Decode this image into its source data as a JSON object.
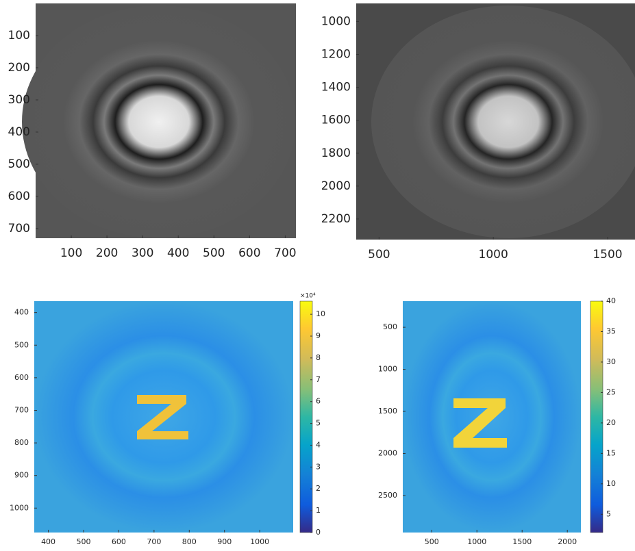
{
  "chart_data": [
    {
      "type": "image",
      "xlim": [
        0,
        730
      ],
      "ylim": [
        0,
        730
      ],
      "xticks": [
        100,
        200,
        300,
        400,
        500,
        600,
        700
      ],
      "yticks": [
        100,
        200,
        300,
        400,
        500,
        600,
        700
      ]
    },
    {
      "type": "image",
      "xlim": [
        400,
        1620
      ],
      "ylim": [
        890,
        2325
      ],
      "xticks": [
        500,
        1000,
        1500
      ],
      "yticks": [
        1000,
        1200,
        1400,
        1600,
        1800,
        2000,
        2200
      ]
    },
    {
      "type": "image",
      "xlim": [
        360,
        1095
      ],
      "ylim": [
        365,
        1075
      ],
      "xticks": [
        400,
        500,
        600,
        700,
        800,
        900,
        1000
      ],
      "yticks": [
        400,
        500,
        600,
        700,
        800,
        900,
        1000
      ],
      "colorbar": {
        "clim": [
          0,
          10.6
        ],
        "ticks": [
          0,
          1,
          2,
          3,
          4,
          5,
          6,
          7,
          8,
          9,
          10
        ],
        "label": "×10⁴"
      }
    },
    {
      "type": "image",
      "xlim": [
        180,
        2150
      ],
      "ylim": [
        190,
        2940
      ],
      "xticks": [
        500,
        1000,
        1500,
        2000
      ],
      "yticks": [
        500,
        1000,
        1500,
        2000,
        2500
      ],
      "colorbar": {
        "clim": [
          2,
          40
        ],
        "ticks": [
          5,
          10,
          15,
          20,
          25,
          30,
          35,
          40
        ]
      }
    }
  ]
}
